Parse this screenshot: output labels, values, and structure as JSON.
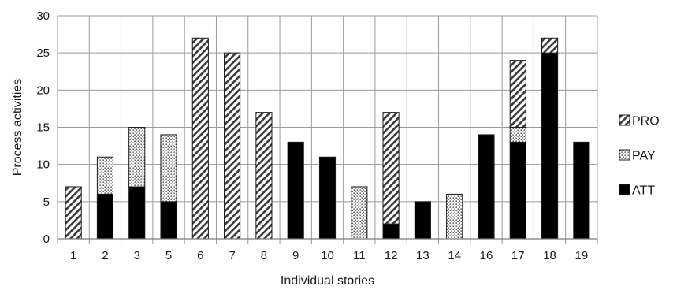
{
  "chart_data": {
    "type": "bar",
    "stacked": true,
    "categories": [
      "1",
      "2",
      "3",
      "5",
      "6",
      "7",
      "8",
      "9",
      "10",
      "11",
      "12",
      "13",
      "14",
      "16",
      "17",
      "18",
      "19"
    ],
    "series": [
      {
        "name": "ATT",
        "pattern": "solid",
        "values": [
          0,
          6,
          7,
          5,
          0,
          0,
          0,
          13,
          11,
          0,
          2,
          5,
          0,
          14,
          13,
          25,
          13
        ]
      },
      {
        "name": "PAY",
        "pattern": "dots",
        "values": [
          0,
          5,
          8,
          9,
          0,
          0,
          0,
          0,
          0,
          7,
          0,
          0,
          6,
          0,
          2,
          0,
          0
        ]
      },
      {
        "name": "PRO",
        "pattern": "diagonal-hatch",
        "values": [
          7,
          0,
          0,
          0,
          27,
          25,
          17,
          0,
          0,
          0,
          15,
          0,
          0,
          0,
          9,
          2,
          0
        ]
      }
    ],
    "xlabel": "Individual stories",
    "ylabel": "Process activities",
    "ylim": [
      0,
      30
    ],
    "yticks": [
      "0",
      "5",
      "10",
      "15",
      "20",
      "25",
      "30"
    ],
    "grid": true,
    "legend_position": "right",
    "legend_order": [
      "PRO",
      "PAY",
      "ATT"
    ],
    "colors": {
      "bar_fill": "#000000",
      "bar_outline": "#1a1a1a",
      "grid": "#9a9a9a",
      "background": "#ffffff"
    }
  }
}
